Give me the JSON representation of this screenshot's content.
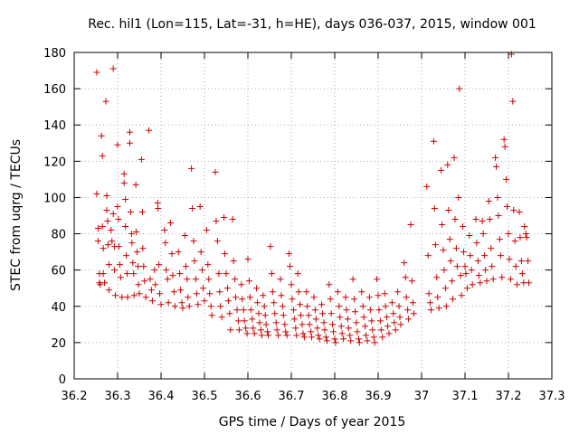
{
  "chart_data": {
    "type": "scatter",
    "title": "Rec. hil1 (Lon=115, Lat=-31, h=HE), days 036-037, 2015, window 001",
    "xlabel": "GPS time / Days of year 2015",
    "ylabel": "STEC from uqrg / TECUs",
    "xlim": [
      36.2,
      37.3
    ],
    "ylim": [
      0,
      180
    ],
    "xticks": [
      36.2,
      36.3,
      36.4,
      36.5,
      36.6,
      36.7,
      36.8,
      36.9,
      37.0,
      37.1,
      37.2,
      37.3
    ],
    "xtick_labels": [
      "36.2",
      "36.3",
      "36.4",
      "36.5",
      "36.6",
      "36.7",
      "36.8",
      "36.9",
      "37",
      "37.1",
      "37.2",
      "37.3"
    ],
    "yticks": [
      0,
      20,
      40,
      60,
      80,
      100,
      120,
      140,
      160,
      180
    ],
    "ytick_labels": [
      "0",
      "20",
      "40",
      "60",
      "80",
      "100",
      "120",
      "140",
      "160",
      "180"
    ],
    "grid": true,
    "marker": "+",
    "marker_color": "#cc0000",
    "points": [
      [
        36.252,
        169
      ],
      [
        36.252,
        102
      ],
      [
        36.255,
        83
      ],
      [
        36.255,
        76
      ],
      [
        36.258,
        58
      ],
      [
        36.258,
        53
      ],
      [
        36.26,
        52
      ],
      [
        36.263,
        134
      ],
      [
        36.265,
        123
      ],
      [
        36.265,
        84
      ],
      [
        36.267,
        72
      ],
      [
        36.267,
        58
      ],
      [
        36.27,
        53
      ],
      [
        36.273,
        153
      ],
      [
        36.275,
        101
      ],
      [
        36.275,
        93
      ],
      [
        36.277,
        87
      ],
      [
        36.278,
        74
      ],
      [
        36.28,
        63
      ],
      [
        36.28,
        49
      ],
      [
        36.285,
        82
      ],
      [
        36.287,
        76
      ],
      [
        36.29,
        171
      ],
      [
        36.29,
        91
      ],
      [
        36.293,
        73
      ],
      [
        36.293,
        60
      ],
      [
        36.295,
        46
      ],
      [
        36.3,
        129
      ],
      [
        36.3,
        95
      ],
      [
        36.302,
        88
      ],
      [
        36.303,
        73
      ],
      [
        36.305,
        63
      ],
      [
        36.307,
        56
      ],
      [
        36.31,
        45
      ],
      [
        36.315,
        113
      ],
      [
        36.315,
        108
      ],
      [
        36.318,
        99
      ],
      [
        36.318,
        84
      ],
      [
        36.32,
        68
      ],
      [
        36.322,
        58
      ],
      [
        36.323,
        45
      ],
      [
        36.328,
        136
      ],
      [
        36.328,
        130
      ],
      [
        36.33,
        92
      ],
      [
        36.332,
        80
      ],
      [
        36.333,
        75
      ],
      [
        36.335,
        64
      ],
      [
        36.337,
        58
      ],
      [
        36.338,
        46
      ],
      [
        36.342,
        107
      ],
      [
        36.343,
        81
      ],
      [
        36.345,
        70
      ],
      [
        36.347,
        62
      ],
      [
        36.348,
        52
      ],
      [
        36.35,
        47
      ],
      [
        36.355,
        121
      ],
      [
        36.357,
        92
      ],
      [
        36.358,
        72
      ],
      [
        36.36,
        62
      ],
      [
        36.362,
        54
      ],
      [
        36.365,
        45
      ],
      [
        36.372,
        137
      ],
      [
        36.375,
        55
      ],
      [
        36.378,
        49
      ],
      [
        36.38,
        43
      ],
      [
        36.385,
        60
      ],
      [
        36.387,
        52
      ],
      [
        36.392,
        97
      ],
      [
        36.393,
        94
      ],
      [
        36.395,
        63
      ],
      [
        36.397,
        47
      ],
      [
        36.4,
        41
      ],
      [
        36.408,
        82
      ],
      [
        36.41,
        75
      ],
      [
        36.412,
        60
      ],
      [
        36.415,
        55
      ],
      [
        36.417,
        42
      ],
      [
        36.422,
        86
      ],
      [
        36.425,
        69
      ],
      [
        36.427,
        57
      ],
      [
        36.43,
        48
      ],
      [
        36.432,
        40
      ],
      [
        36.44,
        70
      ],
      [
        36.443,
        58
      ],
      [
        36.445,
        49
      ],
      [
        36.448,
        42
      ],
      [
        36.45,
        39
      ],
      [
        36.455,
        79
      ],
      [
        36.457,
        62
      ],
      [
        36.46,
        55
      ],
      [
        36.462,
        45
      ],
      [
        36.465,
        40
      ],
      [
        36.47,
        116
      ],
      [
        36.472,
        94
      ],
      [
        36.475,
        76
      ],
      [
        36.477,
        65
      ],
      [
        36.48,
        55
      ],
      [
        36.482,
        47
      ],
      [
        36.485,
        41
      ],
      [
        36.49,
        95
      ],
      [
        36.492,
        70
      ],
      [
        36.495,
        60
      ],
      [
        36.497,
        50
      ],
      [
        36.5,
        43
      ],
      [
        36.505,
        82
      ],
      [
        36.508,
        63
      ],
      [
        36.51,
        55
      ],
      [
        36.512,
        47
      ],
      [
        36.515,
        40
      ],
      [
        36.517,
        35
      ],
      [
        36.525,
        114
      ],
      [
        36.527,
        87
      ],
      [
        36.53,
        76
      ],
      [
        36.533,
        58
      ],
      [
        36.535,
        48
      ],
      [
        36.537,
        40
      ],
      [
        36.54,
        34
      ],
      [
        36.545,
        89
      ],
      [
        36.547,
        69
      ],
      [
        36.55,
        58
      ],
      [
        36.553,
        50
      ],
      [
        36.555,
        43
      ],
      [
        36.558,
        36
      ],
      [
        36.56,
        27
      ],
      [
        36.565,
        88
      ],
      [
        36.567,
        65
      ],
      [
        36.57,
        55
      ],
      [
        36.572,
        45
      ],
      [
        36.575,
        38
      ],
      [
        36.578,
        32
      ],
      [
        36.58,
        27
      ],
      [
        36.585,
        52
      ],
      [
        36.587,
        44
      ],
      [
        36.59,
        38
      ],
      [
        36.592,
        32
      ],
      [
        36.595,
        28
      ],
      [
        36.598,
        25
      ],
      [
        36.6,
        66
      ],
      [
        36.603,
        54
      ],
      [
        36.605,
        45
      ],
      [
        36.607,
        38
      ],
      [
        36.61,
        33
      ],
      [
        36.612,
        28
      ],
      [
        36.615,
        25
      ],
      [
        36.62,
        50
      ],
      [
        36.622,
        42
      ],
      [
        36.625,
        36
      ],
      [
        36.627,
        31
      ],
      [
        36.63,
        27
      ],
      [
        36.632,
        24
      ],
      [
        36.635,
        46
      ],
      [
        36.638,
        40
      ],
      [
        36.64,
        35
      ],
      [
        36.642,
        30
      ],
      [
        36.645,
        26
      ],
      [
        36.647,
        24
      ],
      [
        36.652,
        73
      ],
      [
        36.655,
        58
      ],
      [
        36.657,
        48
      ],
      [
        36.66,
        42
      ],
      [
        36.662,
        36
      ],
      [
        36.665,
        31
      ],
      [
        36.667,
        27
      ],
      [
        36.67,
        24
      ],
      [
        36.675,
        55
      ],
      [
        36.677,
        46
      ],
      [
        36.68,
        40
      ],
      [
        36.682,
        35
      ],
      [
        36.685,
        30
      ],
      [
        36.687,
        26
      ],
      [
        36.69,
        24
      ],
      [
        36.695,
        69
      ],
      [
        36.697,
        62
      ],
      [
        36.7,
        52
      ],
      [
        36.702,
        44
      ],
      [
        36.705,
        38
      ],
      [
        36.707,
        33
      ],
      [
        36.71,
        28
      ],
      [
        36.712,
        24
      ],
      [
        36.715,
        58
      ],
      [
        36.717,
        48
      ],
      [
        36.72,
        41
      ],
      [
        36.722,
        35
      ],
      [
        36.725,
        30
      ],
      [
        36.727,
        25
      ],
      [
        36.73,
        23
      ],
      [
        36.735,
        48
      ],
      [
        36.737,
        40
      ],
      [
        36.74,
        35
      ],
      [
        36.742,
        30
      ],
      [
        36.745,
        26
      ],
      [
        36.747,
        23
      ],
      [
        36.752,
        45
      ],
      [
        36.755,
        38
      ],
      [
        36.757,
        33
      ],
      [
        36.76,
        28
      ],
      [
        36.762,
        24
      ],
      [
        36.765,
        22
      ],
      [
        36.77,
        41
      ],
      [
        36.772,
        36
      ],
      [
        36.775,
        31
      ],
      [
        36.777,
        27
      ],
      [
        36.78,
        23
      ],
      [
        36.782,
        21
      ],
      [
        36.787,
        52
      ],
      [
        36.79,
        44
      ],
      [
        36.792,
        36
      ],
      [
        36.795,
        30
      ],
      [
        36.797,
        26
      ],
      [
        36.8,
        22
      ],
      [
        36.802,
        20
      ],
      [
        36.807,
        48
      ],
      [
        36.81,
        40
      ],
      [
        36.812,
        34
      ],
      [
        36.815,
        29
      ],
      [
        36.817,
        25
      ],
      [
        36.82,
        22
      ],
      [
        36.825,
        45
      ],
      [
        36.827,
        38
      ],
      [
        36.83,
        33
      ],
      [
        36.832,
        28
      ],
      [
        36.835,
        24
      ],
      [
        36.837,
        21
      ],
      [
        36.842,
        55
      ],
      [
        36.845,
        44
      ],
      [
        36.847,
        37
      ],
      [
        36.85,
        31
      ],
      [
        36.852,
        26
      ],
      [
        36.855,
        22
      ],
      [
        36.857,
        20
      ],
      [
        36.862,
        48
      ],
      [
        36.865,
        40
      ],
      [
        36.867,
        34
      ],
      [
        36.87,
        29
      ],
      [
        36.872,
        24
      ],
      [
        36.875,
        21
      ],
      [
        36.88,
        45
      ],
      [
        36.882,
        38
      ],
      [
        36.885,
        32
      ],
      [
        36.887,
        27
      ],
      [
        36.89,
        23
      ],
      [
        36.892,
        20
      ],
      [
        36.897,
        55
      ],
      [
        36.9,
        46
      ],
      [
        36.902,
        38
      ],
      [
        36.905,
        32
      ],
      [
        36.907,
        27
      ],
      [
        36.91,
        23
      ],
      [
        36.915,
        47
      ],
      [
        36.917,
        40
      ],
      [
        36.92,
        34
      ],
      [
        36.922,
        29
      ],
      [
        36.925,
        25
      ],
      [
        36.932,
        42
      ],
      [
        36.935,
        36
      ],
      [
        36.937,
        31
      ],
      [
        36.94,
        27
      ],
      [
        36.945,
        48
      ],
      [
        36.948,
        40
      ],
      [
        36.95,
        34
      ],
      [
        36.952,
        30
      ],
      [
        36.96,
        64
      ],
      [
        36.963,
        56
      ],
      [
        36.965,
        45
      ],
      [
        36.968,
        38
      ],
      [
        36.97,
        33
      ],
      [
        36.975,
        85
      ],
      [
        36.978,
        54
      ],
      [
        36.98,
        42
      ],
      [
        36.982,
        36
      ],
      [
        37.012,
        106
      ],
      [
        37.015,
        68
      ],
      [
        37.017,
        47
      ],
      [
        37.02,
        42
      ],
      [
        37.022,
        38
      ],
      [
        37.028,
        131
      ],
      [
        37.03,
        94
      ],
      [
        37.032,
        74
      ],
      [
        37.035,
        56
      ],
      [
        37.037,
        45
      ],
      [
        37.04,
        39
      ],
      [
        37.045,
        115
      ],
      [
        37.047,
        85
      ],
      [
        37.05,
        71
      ],
      [
        37.052,
        60
      ],
      [
        37.055,
        50
      ],
      [
        37.057,
        40
      ],
      [
        37.06,
        118
      ],
      [
        37.062,
        93
      ],
      [
        37.065,
        77
      ],
      [
        37.067,
        65
      ],
      [
        37.07,
        54
      ],
      [
        37.072,
        44
      ],
      [
        37.075,
        122
      ],
      [
        37.077,
        88
      ],
      [
        37.08,
        72
      ],
      [
        37.082,
        62
      ],
      [
        37.085,
        100
      ],
      [
        37.087,
        160
      ],
      [
        37.09,
        57
      ],
      [
        37.092,
        46
      ],
      [
        37.095,
        84
      ],
      [
        37.097,
        70
      ],
      [
        37.1,
        62
      ],
      [
        37.102,
        58
      ],
      [
        37.105,
        50
      ],
      [
        37.11,
        79
      ],
      [
        37.112,
        68
      ],
      [
        37.115,
        60
      ],
      [
        37.117,
        52
      ],
      [
        37.125,
        88
      ],
      [
        37.127,
        75
      ],
      [
        37.13,
        65
      ],
      [
        37.132,
        57
      ],
      [
        37.135,
        53
      ],
      [
        37.14,
        87
      ],
      [
        37.142,
        80
      ],
      [
        37.145,
        68
      ],
      [
        37.147,
        60
      ],
      [
        37.15,
        54
      ],
      [
        37.155,
        98
      ],
      [
        37.157,
        88
      ],
      [
        37.16,
        72
      ],
      [
        37.162,
        62
      ],
      [
        37.165,
        55
      ],
      [
        37.17,
        122
      ],
      [
        37.172,
        117
      ],
      [
        37.175,
        100
      ],
      [
        37.177,
        90
      ],
      [
        37.18,
        77
      ],
      [
        37.182,
        68
      ],
      [
        37.185,
        56
      ],
      [
        37.19,
        132
      ],
      [
        37.192,
        128
      ],
      [
        37.195,
        110
      ],
      [
        37.197,
        95
      ],
      [
        37.2,
        80
      ],
      [
        37.202,
        66
      ],
      [
        37.205,
        55
      ],
      [
        37.207,
        179
      ],
      [
        37.21,
        153
      ],
      [
        37.212,
        93
      ],
      [
        37.215,
        76
      ],
      [
        37.217,
        62
      ],
      [
        37.22,
        52
      ],
      [
        37.225,
        92
      ],
      [
        37.227,
        78
      ],
      [
        37.23,
        65
      ],
      [
        37.232,
        58
      ],
      [
        37.235,
        53
      ],
      [
        37.237,
        84
      ],
      [
        37.24,
        80
      ],
      [
        37.242,
        78
      ],
      [
        37.245,
        65
      ],
      [
        37.247,
        53
      ]
    ]
  }
}
